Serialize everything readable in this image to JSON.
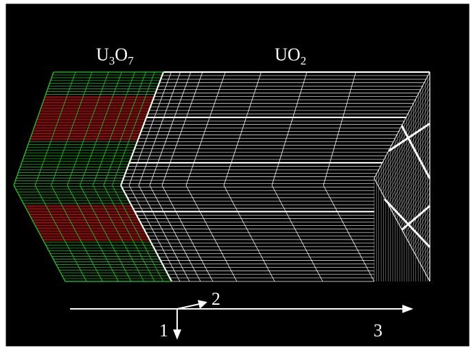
{
  "diagram": {
    "labels": {
      "region_left": {
        "base1": "U",
        "sub1": "3",
        "base2": "O",
        "sub2": "7"
      },
      "region_right": {
        "base1": "UO",
        "sub1": "2"
      }
    },
    "axes": {
      "axis_1": "1",
      "axis_2": "2",
      "axis_3": "3"
    },
    "colors": {
      "background": "#000000",
      "frame": "#ffffff",
      "u3o7_green": "#1fd21f",
      "u3o7_red": "#e01818",
      "uo2_mesh": "#ffffff",
      "arrows": "#ffffff"
    }
  }
}
